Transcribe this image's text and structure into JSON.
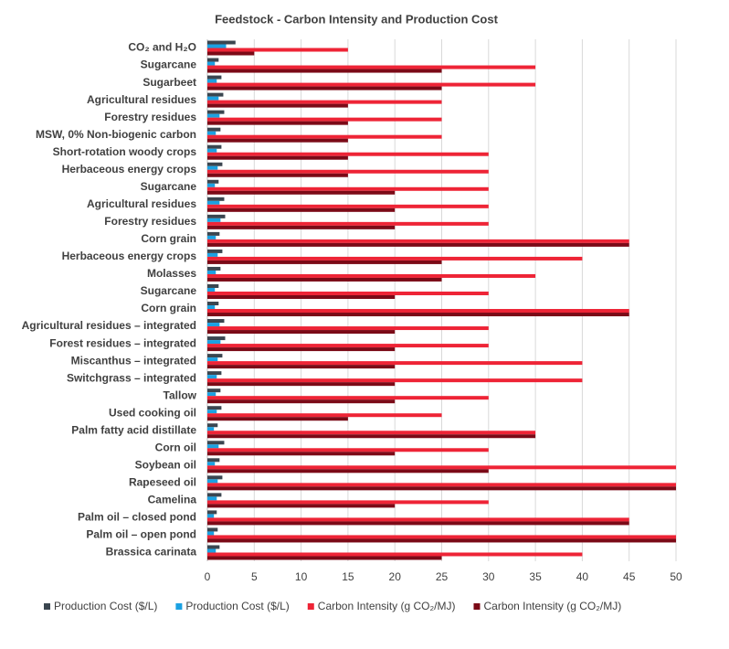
{
  "chart_data": {
    "type": "hbar",
    "title": "Feedstock - Carbon Intensity and Production Cost",
    "categories": [
      "CO₂ and H₂O",
      "Sugarcane",
      "Sugarbeet",
      "Agricultural residues",
      "Forestry residues",
      "MSW, 0% Non-biogenic carbon",
      "Short-rotation woody crops",
      "Herbaceous energy crops",
      "Sugarcane",
      "Agricultural residues",
      "Forestry residues",
      "Corn grain",
      "Herbaceous energy crops",
      "Molasses",
      "Sugarcane",
      "Corn grain",
      "Agricultural residues – integrated",
      "Forest residues – integrated",
      "Miscanthus – integrated",
      "Switchgrass – integrated",
      "Tallow",
      "Used cooking oil",
      "Palm fatty acid distillate",
      "Corn oil",
      "Soybean oil",
      "Rapeseed oil",
      "Camelina",
      "Palm oil – closed pond",
      "Palm oil – open pond",
      "Brassica carinata"
    ],
    "series": [
      {
        "name": "Production Cost ($/L)",
        "color": "#3b4650",
        "values": [
          3,
          1.2,
          1.5,
          1.7,
          1.8,
          1.4,
          1.5,
          1.6,
          1.2,
          1.8,
          1.9,
          1.3,
          1.6,
          1.4,
          1.2,
          1.2,
          1.8,
          1.9,
          1.6,
          1.5,
          1.4,
          1.5,
          1.1,
          1.8,
          1.3,
          1.6,
          1.5,
          1.0,
          1.1,
          1.3
        ]
      },
      {
        "name": "Production Cost ($/L)",
        "color": "#1ba1e2",
        "values": [
          2,
          0.8,
          1.0,
          1.2,
          1.3,
          0.9,
          1.0,
          1.1,
          0.8,
          1.3,
          1.4,
          0.9,
          1.1,
          0.9,
          0.8,
          0.8,
          1.3,
          1.4,
          1.1,
          1.0,
          0.9,
          1.0,
          0.7,
          1.2,
          0.8,
          1.1,
          1.0,
          0.7,
          0.7,
          0.9
        ]
      },
      {
        "name": "Carbon Intensity (g CO₂/MJ)",
        "color": "#ee2436",
        "values": [
          15,
          35,
          35,
          25,
          25,
          25,
          30,
          30,
          30,
          30,
          30,
          45,
          40,
          35,
          30,
          45,
          30,
          30,
          40,
          40,
          30,
          25,
          35,
          30,
          50,
          50,
          30,
          45,
          50,
          40
        ]
      },
      {
        "name": "Carbon Intensity (g CO₂/MJ)",
        "color": "#7b0a17",
        "values": [
          5,
          25,
          25,
          15,
          15,
          15,
          15,
          15,
          20,
          20,
          20,
          45,
          25,
          25,
          20,
          45,
          20,
          20,
          20,
          20,
          20,
          15,
          35,
          20,
          30,
          50,
          20,
          45,
          50,
          25
        ]
      }
    ],
    "xlim": [
      0,
      50
    ],
    "xticks": [
      0,
      5,
      10,
      15,
      20,
      25,
      30,
      35,
      40,
      45,
      50
    ],
    "grid": true,
    "legend": "bottom"
  }
}
